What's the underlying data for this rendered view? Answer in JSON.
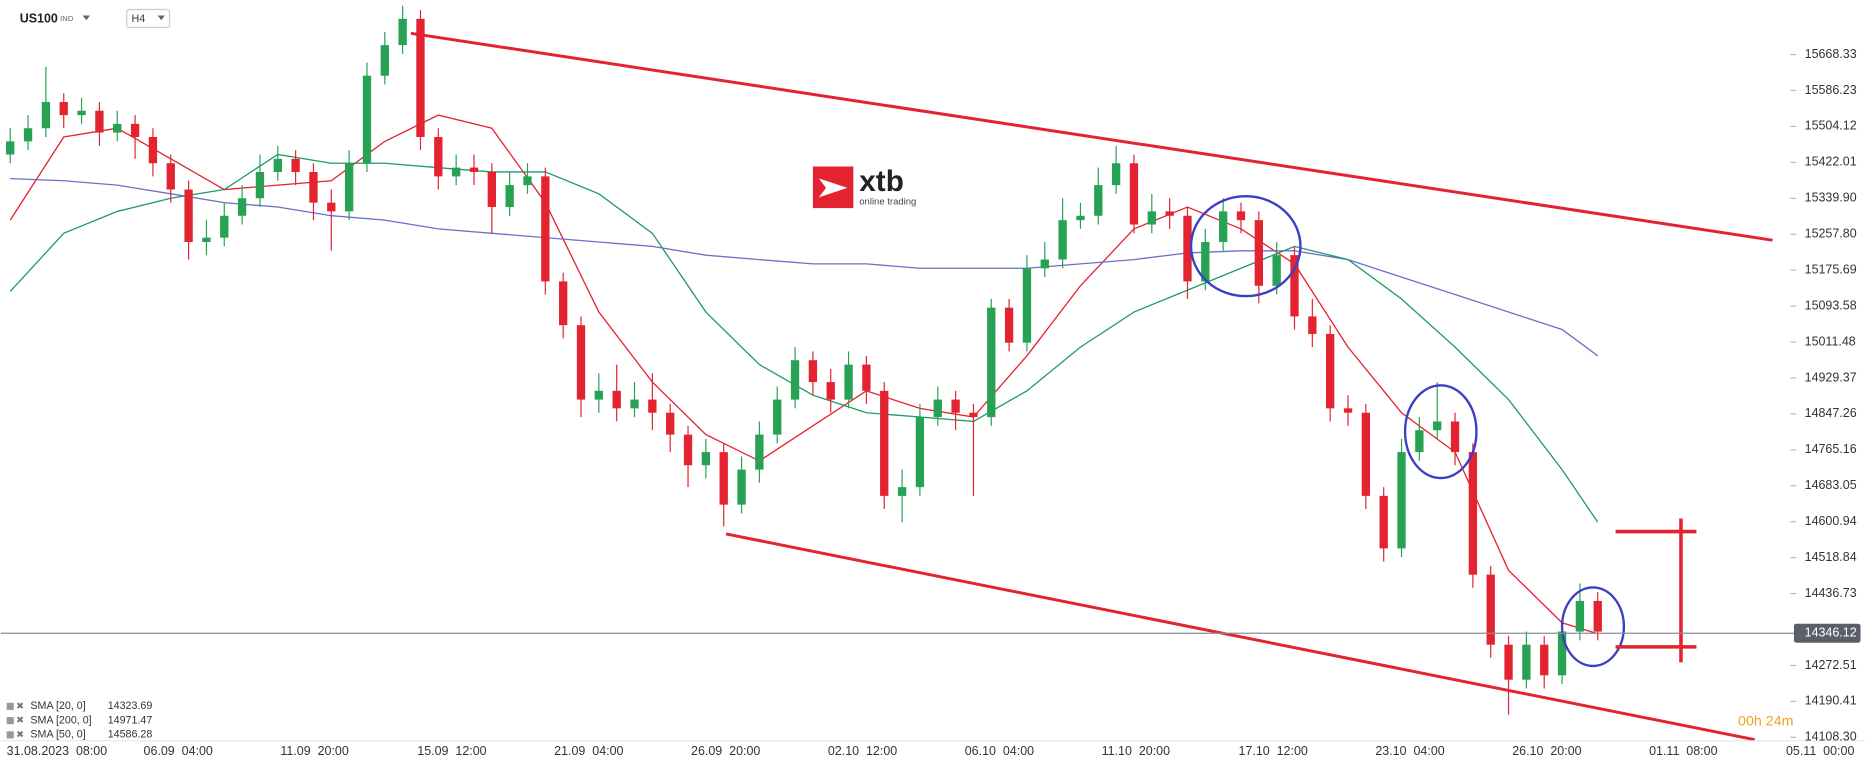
{
  "chart_data": {
    "type": "candlestick",
    "instrument": "US100",
    "instrument_type": "IND",
    "timeframe": "H4",
    "logo_text": "xtb",
    "logo_tagline": "online trading",
    "timer": "00h 24m",
    "ylim": [
      14103,
      15793
    ],
    "yticks": [
      15668.33,
      15586.23,
      15504.12,
      15422.01,
      {
        "value": 15339.9,
        "label": "15339.90"
      },
      {
        "value": 15257.8,
        "label": "15257.80"
      },
      15175.69,
      15093.58,
      15011.48,
      14929.37,
      14847.26,
      14765.16,
      14683.05,
      14600.94,
      14518.84,
      14436.73,
      14272.51,
      14190.41,
      {
        "value": 14108.3,
        "label": "14108.30"
      }
    ],
    "current_price": 14346.12,
    "x_labels": [
      "31.08.2023  08:00",
      "06.09  04:00",
      "11.09  20:00",
      "15.09  12:00",
      "21.09  04:00",
      "26.09  20:00",
      "02.10  12:00",
      "06.10  04:00",
      "11.10  20:00",
      "17.10  12:00",
      "23.10  04:00",
      "26.10  20:00",
      "01.11  08:00",
      "05.11  00:00"
    ],
    "up_color": "#27a153",
    "down_color": "#e3232f",
    "open": [
      15440,
      15470,
      15500,
      15560,
      15530,
      15540,
      15490,
      15510,
      15480,
      15420,
      15360,
      15240,
      15250,
      15300,
      15340,
      15400,
      15430,
      15400,
      15330,
      15310,
      15420,
      15620,
      15690,
      15750,
      15480,
      15390,
      15410,
      15400,
      15320,
      15370,
      15390,
      15150,
      15050,
      14880,
      14900,
      14860,
      14880,
      14850,
      14800,
      14730,
      14760,
      14640,
      14720,
      14800,
      14880,
      14970,
      14920,
      14880,
      14960,
      14900,
      14660,
      14680,
      14840,
      14880,
      14850,
      14840,
      15090,
      15010,
      15180,
      15200,
      15290,
      15300,
      15370,
      15420,
      15280,
      15310,
      15300,
      15150,
      15240,
      15310,
      15290,
      15140,
      15210,
      15070,
      15030,
      14860,
      14850,
      14660,
      14540,
      14760,
      14810,
      14830,
      14760,
      14480,
      14320,
      14240,
      14320,
      14250,
      14350,
      14420
    ],
    "high": [
      15500,
      15530,
      15640,
      15580,
      15570,
      15560,
      15540,
      15530,
      15500,
      15440,
      15380,
      15290,
      15330,
      15370,
      15440,
      15460,
      15450,
      15420,
      15360,
      15450,
      15650,
      15720,
      15780,
      15770,
      15500,
      15440,
      15440,
      15420,
      15400,
      15420,
      15410,
      15170,
      15070,
      14940,
      14960,
      14920,
      14940,
      14870,
      14820,
      14790,
      14780,
      14750,
      14830,
      14910,
      15000,
      14990,
      14950,
      14990,
      14980,
      14920,
      14720,
      14870,
      14910,
      14900,
      14870,
      15110,
      15110,
      15210,
      15240,
      15340,
      15330,
      15410,
      15460,
      15440,
      15350,
      15340,
      15320,
      15270,
      15340,
      15330,
      15310,
      15240,
      15230,
      15110,
      15050,
      14890,
      14870,
      14680,
      14790,
      14840,
      14920,
      14850,
      14780,
      14500,
      14340,
      14350,
      14340,
      14380,
      14460,
      14440
    ],
    "low": [
      15420,
      15450,
      15480,
      15500,
      15510,
      15460,
      15470,
      15430,
      15390,
      15330,
      15200,
      15210,
      15230,
      15280,
      15320,
      15380,
      15370,
      15290,
      15220,
      15290,
      15400,
      15600,
      15670,
      15450,
      15360,
      15370,
      15370,
      15260,
      15300,
      15350,
      15120,
      15020,
      14840,
      14850,
      14830,
      14840,
      14810,
      14760,
      14680,
      14700,
      14590,
      14620,
      14690,
      14780,
      14860,
      14890,
      14850,
      14860,
      14870,
      14630,
      14600,
      14660,
      14820,
      14810,
      14660,
      14820,
      14990,
      14990,
      15160,
      15180,
      15270,
      15280,
      15350,
      15260,
      15260,
      15270,
      15110,
      15130,
      15220,
      15260,
      15100,
      15120,
      15040,
      15000,
      14830,
      14820,
      14630,
      14510,
      14520,
      14740,
      14790,
      14730,
      14450,
      14290,
      14160,
      14220,
      14220,
      14230,
      14330,
      14330
    ],
    "close": [
      15470,
      15500,
      15560,
      15530,
      15540,
      15490,
      15510,
      15480,
      15420,
      15360,
      15240,
      15250,
      15300,
      15340,
      15400,
      15430,
      15400,
      15330,
      15310,
      15420,
      15620,
      15690,
      15750,
      15480,
      15390,
      15410,
      15400,
      15320,
      15370,
      15390,
      15150,
      15050,
      14880,
      14900,
      14860,
      14880,
      14850,
      14800,
      14730,
      14760,
      14640,
      14720,
      14800,
      14880,
      14970,
      14920,
      14880,
      14960,
      14900,
      14660,
      14680,
      14840,
      14880,
      14850,
      14840,
      15090,
      15010,
      15180,
      15200,
      15290,
      15300,
      15370,
      15420,
      15280,
      15310,
      15300,
      15150,
      15240,
      15310,
      15290,
      15140,
      15210,
      15070,
      15030,
      14860,
      14850,
      14660,
      14540,
      14760,
      14810,
      14830,
      14760,
      14480,
      14320,
      14240,
      14320,
      14250,
      14350,
      14420,
      14350
    ],
    "moving_averages": [
      {
        "name": "SMA [20, 0]",
        "legend_value": 14323.69,
        "color": "#e3232f",
        "x": [
          0,
          3,
          6,
          9,
          12,
          15,
          18,
          21,
          24,
          27,
          30,
          33,
          36,
          39,
          42,
          45,
          48,
          51,
          54,
          57,
          60,
          63,
          66,
          69,
          72,
          75,
          78,
          81,
          84,
          87,
          89
        ],
        "values": [
          15290,
          15480,
          15500,
          15430,
          15360,
          15370,
          15380,
          15470,
          15530,
          15500,
          15330,
          15080,
          14920,
          14800,
          14740,
          14820,
          14900,
          14860,
          14840,
          14980,
          15140,
          15270,
          15320,
          15270,
          15190,
          15000,
          14850,
          14760,
          14490,
          14370,
          14345
        ]
      },
      {
        "name": "SMA [200, 0]",
        "legend_value": 14971.47,
        "color": "#6b6fc9",
        "x": [
          0,
          3,
          6,
          9,
          12,
          15,
          18,
          21,
          24,
          27,
          30,
          33,
          36,
          39,
          42,
          45,
          48,
          51,
          54,
          57,
          60,
          63,
          66,
          69,
          72,
          75,
          78,
          81,
          84,
          87,
          89
        ],
        "values": [
          15385,
          15380,
          15370,
          15350,
          15330,
          15320,
          15300,
          15290,
          15270,
          15260,
          15250,
          15240,
          15230,
          15210,
          15200,
          15190,
          15190,
          15180,
          15180,
          15180,
          15190,
          15200,
          15215,
          15220,
          15220,
          15200,
          15160,
          15120,
          15080,
          15040,
          14980
        ]
      },
      {
        "name": "SMA [50, 0]",
        "legend_value": 14586.28,
        "color": "#1f9a6a",
        "x": [
          0,
          3,
          6,
          9,
          12,
          15,
          18,
          21,
          24,
          27,
          30,
          33,
          36,
          39,
          42,
          45,
          48,
          51,
          54,
          57,
          60,
          63,
          66,
          69,
          72,
          75,
          78,
          81,
          84,
          87,
          89
        ],
        "values": [
          15127,
          15260,
          15310,
          15340,
          15360,
          15440,
          15420,
          15420,
          15410,
          15400,
          15400,
          15350,
          15260,
          15080,
          14960,
          14890,
          14850,
          14840,
          14830,
          14900,
          15000,
          15080,
          15130,
          15180,
          15230,
          15200,
          15110,
          15000,
          14880,
          14720,
          14600
        ]
      }
    ]
  }
}
